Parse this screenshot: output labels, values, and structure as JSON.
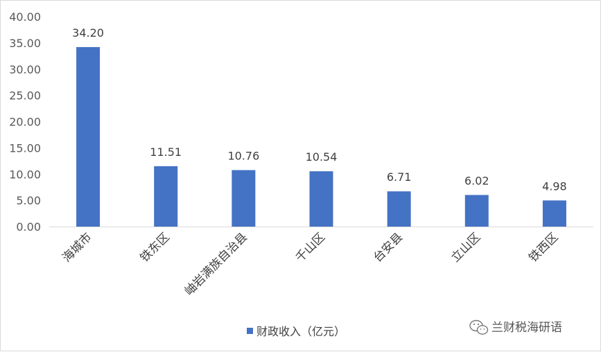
{
  "chart_data": {
    "type": "bar",
    "categories": [
      "海城市",
      "铁东区",
      "岫岩满族自治县",
      "千山区",
      "台安县",
      "立山区",
      "铁西区"
    ],
    "series": [
      {
        "name": "财政收入（亿元）",
        "values": [
          34.2,
          11.51,
          10.76,
          10.54,
          6.71,
          6.02,
          4.98
        ]
      }
    ],
    "data_labels": [
      "34.20",
      "11.51",
      "10.76",
      "10.54",
      "6.71",
      "6.02",
      "4.98"
    ],
    "ylim": [
      0,
      40
    ],
    "yticks": [
      "0.00",
      "5.00",
      "10.00",
      "15.00",
      "20.00",
      "25.00",
      "30.00",
      "35.00",
      "40.00"
    ],
    "grid": false,
    "legend_position": "bottom",
    "bar_color": "#4472c4"
  },
  "watermark": {
    "text": "兰财税海研语",
    "icon": "wechat-icon"
  }
}
